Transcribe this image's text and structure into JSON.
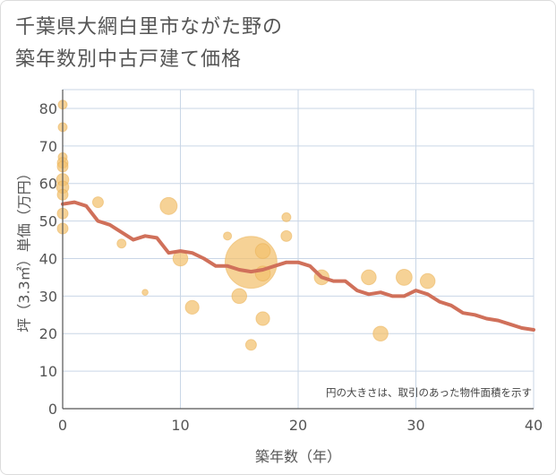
{
  "title_line1": "千葉県大網白里市ながた野の",
  "title_line2": "築年数別中古戸建て価格",
  "colors": {
    "bubble": "#f2c06e",
    "line": "#d0705a",
    "grid": "#c9d6e6",
    "axis": "#555555"
  },
  "chart_data": {
    "type": "scatter",
    "xlabel": "築年数（年）",
    "ylabel": "坪（3.3㎡）単価（万円）",
    "xlim": [
      0,
      40
    ],
    "ylim": [
      0,
      85
    ],
    "xticks": [
      0,
      10,
      20,
      30,
      40
    ],
    "yticks": [
      0,
      10,
      20,
      30,
      40,
      50,
      60,
      70,
      80
    ],
    "grid": true,
    "note": "円の大きさは、取引のあった物件面積を示す",
    "points": [
      {
        "x": 0,
        "y": 81,
        "s": 1
      },
      {
        "x": 0,
        "y": 75,
        "s": 1
      },
      {
        "x": 0,
        "y": 67,
        "s": 1
      },
      {
        "x": 0,
        "y": 65.5,
        "s": 1.5
      },
      {
        "x": 0,
        "y": 64.5,
        "s": 1.5
      },
      {
        "x": 0,
        "y": 61,
        "s": 2
      },
      {
        "x": 0,
        "y": 59,
        "s": 2
      },
      {
        "x": 0,
        "y": 57,
        "s": 1.5
      },
      {
        "x": 0,
        "y": 52,
        "s": 1.5
      },
      {
        "x": 0,
        "y": 48,
        "s": 1.5
      },
      {
        "x": 3,
        "y": 55,
        "s": 1.5
      },
      {
        "x": 5,
        "y": 44,
        "s": 1
      },
      {
        "x": 7,
        "y": 31,
        "s": 0.4
      },
      {
        "x": 9,
        "y": 54,
        "s": 4
      },
      {
        "x": 10,
        "y": 40,
        "s": 3
      },
      {
        "x": 11,
        "y": 27,
        "s": 2.5
      },
      {
        "x": 14,
        "y": 46,
        "s": 0.8
      },
      {
        "x": 15,
        "y": 30,
        "s": 3
      },
      {
        "x": 16,
        "y": 39,
        "s": 40
      },
      {
        "x": 16,
        "y": 17,
        "s": 1.5
      },
      {
        "x": 17,
        "y": 42,
        "s": 3
      },
      {
        "x": 17,
        "y": 36,
        "s": 3
      },
      {
        "x": 17,
        "y": 24,
        "s": 2.5
      },
      {
        "x": 19,
        "y": 51,
        "s": 1
      },
      {
        "x": 19,
        "y": 46,
        "s": 1.5
      },
      {
        "x": 22,
        "y": 35,
        "s": 3
      },
      {
        "x": 26,
        "y": 35,
        "s": 3
      },
      {
        "x": 27,
        "y": 20,
        "s": 3
      },
      {
        "x": 29,
        "y": 35,
        "s": 3.5
      },
      {
        "x": 31,
        "y": 34,
        "s": 3
      }
    ],
    "trend": {
      "x": [
        0,
        1,
        2,
        3,
        4,
        5,
        6,
        7,
        8,
        9,
        10,
        11,
        12,
        13,
        14,
        15,
        16,
        17,
        18,
        19,
        20,
        21,
        22,
        23,
        24,
        25,
        26,
        27,
        28,
        29,
        30,
        31,
        32,
        33,
        34,
        35,
        36,
        37,
        38,
        39,
        40
      ],
      "y": [
        54.5,
        55,
        54,
        50,
        49,
        47,
        45,
        46,
        45.5,
        41.5,
        42,
        41.5,
        40,
        38,
        38,
        37,
        36.5,
        37,
        38,
        39,
        39,
        38,
        35,
        34,
        34,
        31.5,
        30.5,
        31,
        30,
        30,
        31.5,
        30.5,
        28.5,
        27.5,
        25.5,
        25,
        24,
        23.5,
        22.5,
        21.5,
        21
      ]
    }
  }
}
